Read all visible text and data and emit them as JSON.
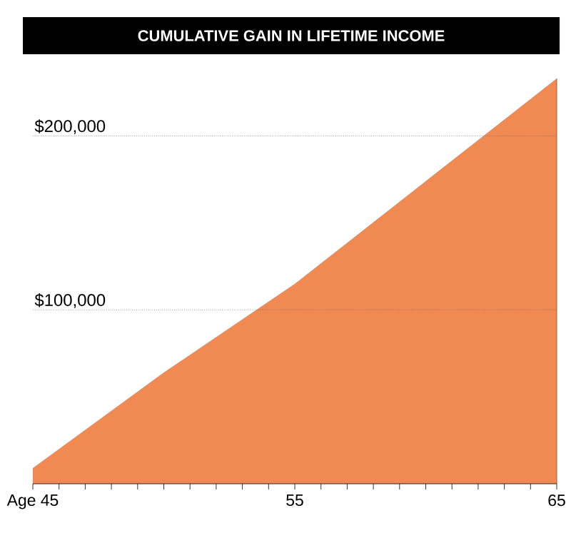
{
  "chart_data": {
    "type": "area",
    "title": "CUMULATIVE GAIN IN LIFETIME INCOME",
    "x": [
      45,
      50,
      55,
      60,
      65
    ],
    "series": [
      {
        "color": "#f08a52",
        "values": [
          9000,
          64000,
          115000,
          174000,
          233000
        ]
      }
    ],
    "xlim": [
      45,
      65
    ],
    "xticks": [
      {
        "value": 45,
        "label": "Age 45"
      },
      {
        "value": 46,
        "label": null
      },
      {
        "value": 47,
        "label": null
      },
      {
        "value": 48,
        "label": null
      },
      {
        "value": 49,
        "label": null
      },
      {
        "value": 50,
        "label": null
      },
      {
        "value": 51,
        "label": null
      },
      {
        "value": 52,
        "label": null
      },
      {
        "value": 53,
        "label": null
      },
      {
        "value": 54,
        "label": null
      },
      55,
      {
        "value": 56,
        "label": null
      },
      {
        "value": 57,
        "label": null
      },
      {
        "value": 58,
        "label": null
      },
      {
        "value": 59,
        "label": null
      },
      {
        "value": 60,
        "label": null
      },
      {
        "value": 61,
        "label": null
      },
      {
        "value": 62,
        "label": null
      },
      {
        "value": 63,
        "label": null
      },
      {
        "value": 64,
        "label": null
      },
      65
    ],
    "ylim": [
      0,
      233000
    ],
    "yticks": [
      {
        "value": 100000,
        "label": "$100,000"
      },
      {
        "value": 200000,
        "label": "$200,000"
      }
    ],
    "grid": "y"
  }
}
